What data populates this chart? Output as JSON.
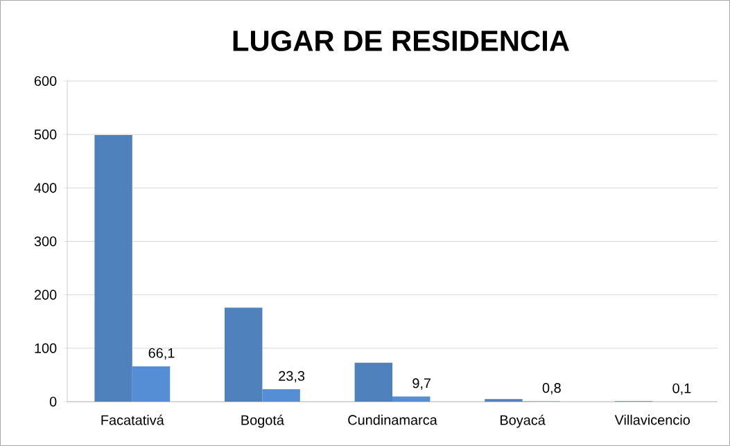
{
  "chart_data": {
    "type": "bar",
    "title": "LUGAR DE RESIDENCIA",
    "categories": [
      "Facatativá",
      "Bogotá",
      "Cundinamarca",
      "Boyacá",
      "Villavicencio"
    ],
    "series": [
      {
        "color": "#4f81bd",
        "values": [
          499,
          176,
          73,
          5,
          1
        ]
      },
      {
        "color": "#558ed5",
        "values": [
          66.1,
          23.3,
          9.7,
          0.8,
          0.1
        ],
        "value_labels": [
          "66,1",
          "23,3",
          "9,7",
          "0,8",
          "0,1"
        ]
      }
    ],
    "ylim": [
      0,
      600
    ],
    "yticks": [
      0,
      100,
      200,
      300,
      400,
      500,
      600
    ],
    "grid": "y"
  }
}
